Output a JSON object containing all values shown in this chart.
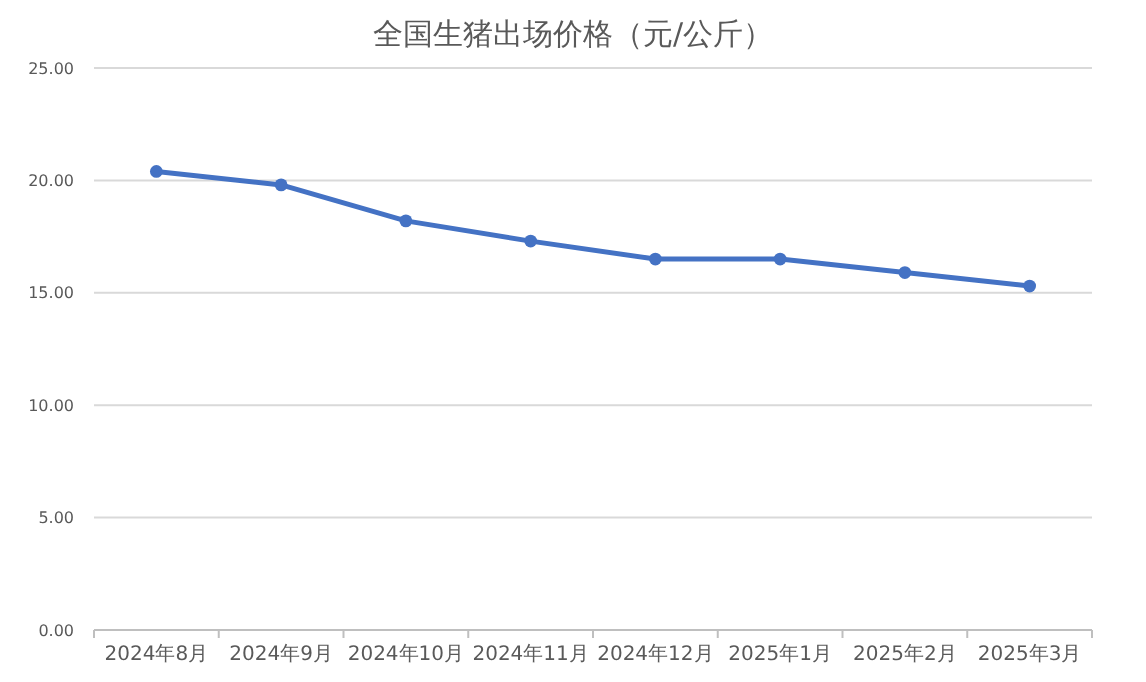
{
  "chart_data": {
    "type": "line",
    "title": "全国生猪出场价格（元/公斤）",
    "categories": [
      "2024年8月",
      "2024年9月",
      "2024年10月",
      "2024年11月",
      "2024年12月",
      "2025年1月",
      "2025年2月",
      "2025年3月"
    ],
    "series": [
      {
        "color": "#4472c4",
        "values": [
          20.4,
          19.8,
          18.2,
          17.3,
          16.5,
          16.5,
          15.9,
          15.3
        ]
      }
    ],
    "ylim": [
      0,
      25
    ],
    "yticks": [
      {
        "value": 0,
        "label": "0.00"
      },
      {
        "value": 5,
        "label": "5.00"
      },
      {
        "value": 10,
        "label": "10.00"
      },
      {
        "value": 15,
        "label": "15.00"
      },
      {
        "value": 20,
        "label": "20.00"
      },
      {
        "value": 25,
        "label": "25.00"
      }
    ],
    "grid": "y",
    "marker": "circle"
  }
}
